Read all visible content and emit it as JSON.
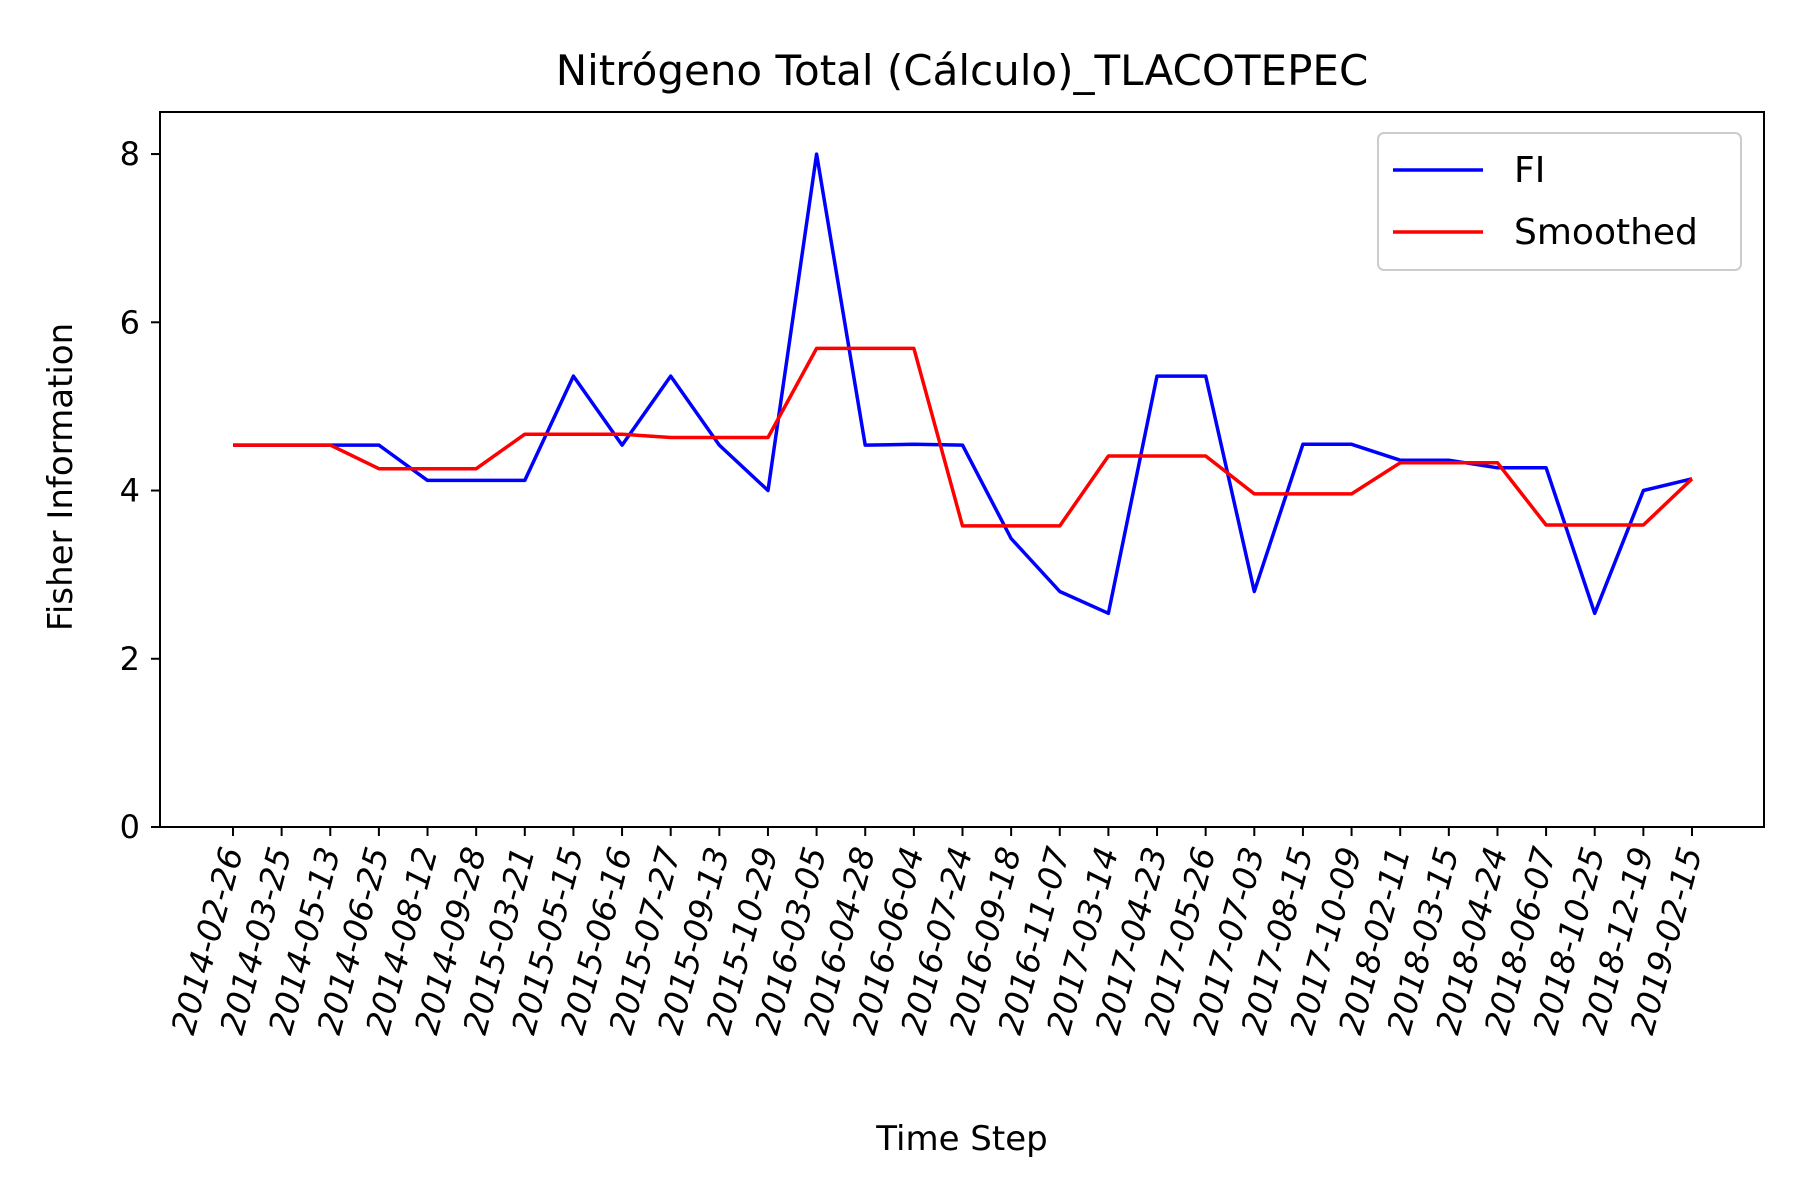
{
  "chart_data": {
    "type": "line",
    "title": "Nitrógeno Total (Cálculo)_TLACOTEPEC",
    "xlabel": "Time Step",
    "ylabel": "Fisher Information",
    "ylim": [
      0,
      8.5
    ],
    "yticks": [
      0,
      2,
      4,
      6,
      8
    ],
    "grid": false,
    "legend_position": "top-right",
    "categories": [
      "2014-02-26",
      "2014-03-25",
      "2014-05-13",
      "2014-06-25",
      "2014-08-12",
      "2014-09-28",
      "2015-03-21",
      "2015-05-15",
      "2015-06-16",
      "2015-07-27",
      "2015-09-13",
      "2015-10-29",
      "2016-03-05",
      "2016-04-28",
      "2016-06-04",
      "2016-07-24",
      "2016-09-18",
      "2016-11-07",
      "2017-03-14",
      "2017-04-23",
      "2017-05-26",
      "2017-07-03",
      "2017-08-15",
      "2017-10-09",
      "2018-02-11",
      "2018-03-15",
      "2018-04-24",
      "2018-06-07",
      "2018-10-25",
      "2018-12-19",
      "2019-02-15"
    ],
    "series": [
      {
        "name": "FI",
        "color": "#0000ff",
        "values": [
          4.54,
          4.54,
          4.54,
          4.54,
          4.12,
          4.12,
          4.12,
          5.36,
          4.54,
          5.36,
          4.54,
          4.0,
          8.0,
          4.54,
          4.55,
          4.54,
          3.43,
          2.8,
          2.54,
          5.36,
          5.36,
          2.8,
          4.55,
          4.55,
          4.36,
          4.36,
          4.27,
          4.27,
          2.54,
          4.0,
          4.14
        ]
      },
      {
        "name": "Smoothed",
        "color": "#ff0000",
        "values": [
          4.54,
          4.54,
          4.54,
          4.26,
          4.26,
          4.26,
          4.67,
          4.67,
          4.67,
          4.63,
          4.63,
          4.63,
          5.69,
          5.69,
          5.69,
          3.58,
          3.58,
          3.58,
          4.41,
          4.41,
          4.41,
          3.96,
          3.96,
          3.96,
          4.33,
          4.33,
          4.33,
          3.59,
          3.59,
          3.59,
          4.14
        ]
      }
    ]
  }
}
